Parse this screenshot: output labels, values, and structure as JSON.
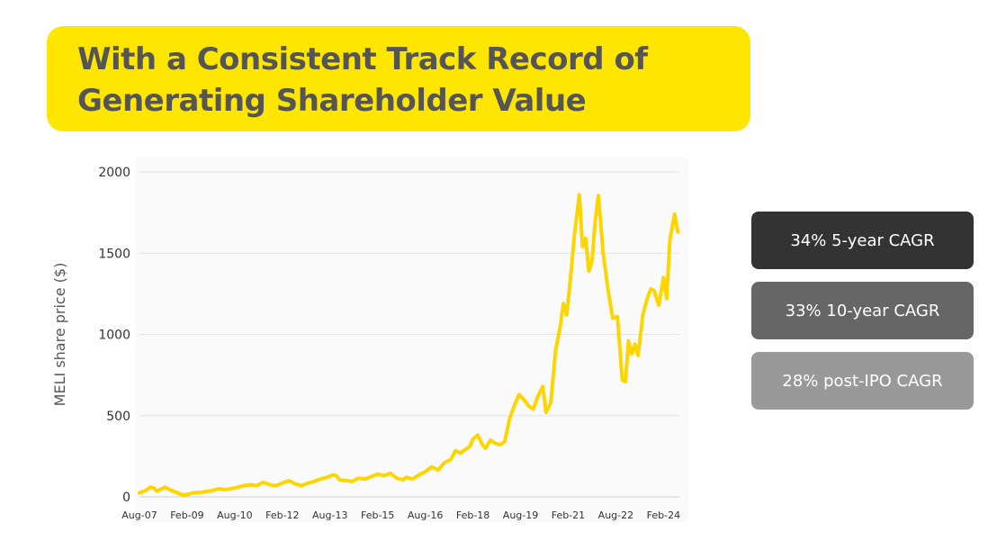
{
  "title": {
    "line1": "With a Consistent Track Record of",
    "line2": "Generating Shareholder Value"
  },
  "colors": {
    "banner": "#FFE600",
    "title_text": "#555555",
    "line": "#FFD500",
    "box1": "#333333",
    "box2": "#666666",
    "box3": "#999999"
  },
  "stats": [
    {
      "label": "34% 5-year CAGR"
    },
    {
      "label": "33% 10-year CAGR"
    },
    {
      "label": "28% post-IPO CAGR"
    }
  ],
  "chart_data": {
    "type": "line",
    "ylabel": "MELI share price ($)",
    "xlabel": "",
    "ylim": [
      0,
      2000
    ],
    "xlim": [
      2007.6,
      2024.6
    ],
    "grid": "horizontal",
    "y_ticks": [
      0,
      500,
      1000,
      1500,
      2000
    ],
    "x_ticks": [
      {
        "label": "Aug-07",
        "x": 2007.6
      },
      {
        "label": "Feb-09",
        "x": 2009.1
      },
      {
        "label": "Aug-10",
        "x": 2010.6
      },
      {
        "label": "Feb-12",
        "x": 2012.1
      },
      {
        "label": "Aug-13",
        "x": 2013.6
      },
      {
        "label": "Feb-15",
        "x": 2015.1
      },
      {
        "label": "Aug-16",
        "x": 2016.6
      },
      {
        "label": "Feb-18",
        "x": 2018.1
      },
      {
        "label": "Aug-19",
        "x": 2019.6
      },
      {
        "label": "Feb-21",
        "x": 2021.1
      },
      {
        "label": "Aug-22",
        "x": 2022.6
      },
      {
        "label": "Feb-24",
        "x": 2024.1
      }
    ],
    "series": [
      {
        "points": [
          [
            2007.6,
            25
          ],
          [
            2007.8,
            40
          ],
          [
            2007.95,
            60
          ],
          [
            2008.05,
            55
          ],
          [
            2008.15,
            35
          ],
          [
            2008.3,
            50
          ],
          [
            2008.4,
            60
          ],
          [
            2008.6,
            40
          ],
          [
            2008.8,
            25
          ],
          [
            2008.95,
            12
          ],
          [
            2009.1,
            15
          ],
          [
            2009.3,
            25
          ],
          [
            2009.6,
            30
          ],
          [
            2009.9,
            40
          ],
          [
            2010.1,
            50
          ],
          [
            2010.3,
            45
          ],
          [
            2010.6,
            55
          ],
          [
            2010.9,
            70
          ],
          [
            2011.1,
            75
          ],
          [
            2011.3,
            70
          ],
          [
            2011.5,
            90
          ],
          [
            2011.7,
            75
          ],
          [
            2011.9,
            70
          ],
          [
            2012.1,
            85
          ],
          [
            2012.3,
            100
          ],
          [
            2012.5,
            80
          ],
          [
            2012.7,
            70
          ],
          [
            2012.9,
            85
          ],
          [
            2013.1,
            95
          ],
          [
            2013.3,
            110
          ],
          [
            2013.5,
            120
          ],
          [
            2013.7,
            135
          ],
          [
            2013.8,
            130
          ],
          [
            2013.9,
            105
          ],
          [
            2014.1,
            100
          ],
          [
            2014.3,
            95
          ],
          [
            2014.5,
            115
          ],
          [
            2014.7,
            110
          ],
          [
            2014.9,
            125
          ],
          [
            2015.1,
            140
          ],
          [
            2015.3,
            130
          ],
          [
            2015.5,
            145
          ],
          [
            2015.7,
            115
          ],
          [
            2015.9,
            105
          ],
          [
            2016.0,
            120
          ],
          [
            2016.2,
            110
          ],
          [
            2016.4,
            135
          ],
          [
            2016.6,
            155
          ],
          [
            2016.8,
            185
          ],
          [
            2017.0,
            165
          ],
          [
            2017.2,
            210
          ],
          [
            2017.4,
            230
          ],
          [
            2017.55,
            285
          ],
          [
            2017.7,
            270
          ],
          [
            2017.85,
            290
          ],
          [
            2018.0,
            310
          ],
          [
            2018.1,
            355
          ],
          [
            2018.25,
            380
          ],
          [
            2018.4,
            320
          ],
          [
            2018.5,
            300
          ],
          [
            2018.65,
            350
          ],
          [
            2018.8,
            330
          ],
          [
            2018.95,
            320
          ],
          [
            2019.1,
            340
          ],
          [
            2019.25,
            480
          ],
          [
            2019.4,
            560
          ],
          [
            2019.55,
            630
          ],
          [
            2019.7,
            600
          ],
          [
            2019.85,
            560
          ],
          [
            2020.0,
            540
          ],
          [
            2020.15,
            620
          ],
          [
            2020.3,
            680
          ],
          [
            2020.4,
            520
          ],
          [
            2020.55,
            580
          ],
          [
            2020.7,
            900
          ],
          [
            2020.85,
            1050
          ],
          [
            2020.95,
            1190
          ],
          [
            2021.05,
            1120
          ],
          [
            2021.15,
            1300
          ],
          [
            2021.3,
            1620
          ],
          [
            2021.45,
            1860
          ],
          [
            2021.55,
            1540
          ],
          [
            2021.65,
            1590
          ],
          [
            2021.75,
            1390
          ],
          [
            2021.85,
            1450
          ],
          [
            2021.95,
            1700
          ],
          [
            2022.05,
            1855
          ],
          [
            2022.2,
            1500
          ],
          [
            2022.35,
            1280
          ],
          [
            2022.5,
            1100
          ],
          [
            2022.65,
            1110
          ],
          [
            2022.8,
            720
          ],
          [
            2022.9,
            710
          ],
          [
            2023.0,
            960
          ],
          [
            2023.1,
            880
          ],
          [
            2023.2,
            940
          ],
          [
            2023.3,
            870
          ],
          [
            2023.45,
            1120
          ],
          [
            2023.6,
            1230
          ],
          [
            2023.7,
            1280
          ],
          [
            2023.8,
            1270
          ],
          [
            2023.95,
            1180
          ],
          [
            2024.1,
            1350
          ],
          [
            2024.2,
            1220
          ],
          [
            2024.3,
            1580
          ],
          [
            2024.45,
            1740
          ],
          [
            2024.55,
            1630
          ]
        ]
      }
    ]
  }
}
